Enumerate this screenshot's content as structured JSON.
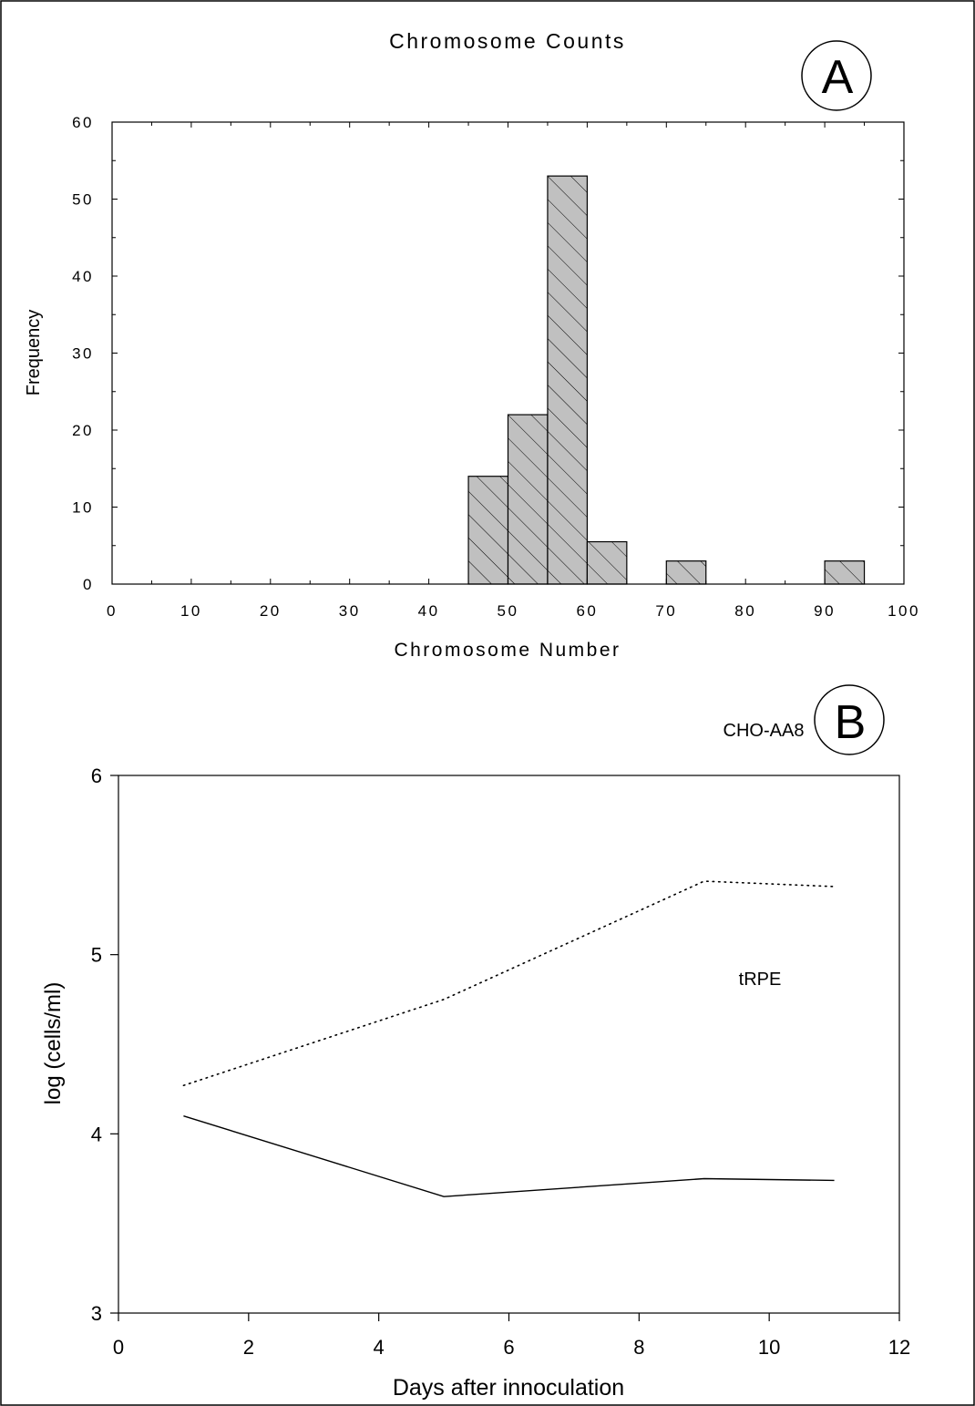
{
  "chart_data": [
    {
      "panel_label": "A",
      "type": "bar",
      "title": "Chromosome Counts",
      "xlabel": "Chromosome Number",
      "ylabel": "Frequency",
      "xlim": [
        0,
        100
      ],
      "ylim": [
        0,
        60
      ],
      "x_ticks": [
        0,
        10,
        20,
        30,
        40,
        50,
        60,
        70,
        80,
        90,
        100
      ],
      "y_ticks": [
        0,
        10,
        20,
        30,
        40,
        50,
        60
      ],
      "bin_width": 5,
      "bins": [
        {
          "start": 45,
          "end": 50,
          "value": 14
        },
        {
          "start": 50,
          "end": 55,
          "value": 22
        },
        {
          "start": 55,
          "end": 60,
          "value": 53
        },
        {
          "start": 60,
          "end": 65,
          "value": 5.5
        },
        {
          "start": 70,
          "end": 75,
          "value": 3
        },
        {
          "start": 90,
          "end": 95,
          "value": 3
        }
      ],
      "bar_fill": "#c0c0c0",
      "bar_pattern": "diagonal hatch",
      "grid": false
    },
    {
      "panel_label": "B",
      "type": "line",
      "title": "",
      "xlabel": "Days after innoculation",
      "ylabel": "log (cells/ml)",
      "xlim": [
        0,
        12
      ],
      "ylim": [
        3,
        6
      ],
      "x_ticks": [
        0,
        2,
        4,
        6,
        8,
        10,
        12
      ],
      "y_ticks": [
        3,
        4,
        5,
        6
      ],
      "series": [
        {
          "name": "CHO-AA8",
          "style": "dotted",
          "x": [
            1,
            5,
            9,
            11
          ],
          "y": [
            4.27,
            4.75,
            5.41,
            5.38
          ]
        },
        {
          "name": "tRPE",
          "style": "solid",
          "x": [
            1,
            5,
            9,
            11
          ],
          "y": [
            4.1,
            3.65,
            3.75,
            3.74
          ]
        }
      ],
      "grid": false
    }
  ]
}
